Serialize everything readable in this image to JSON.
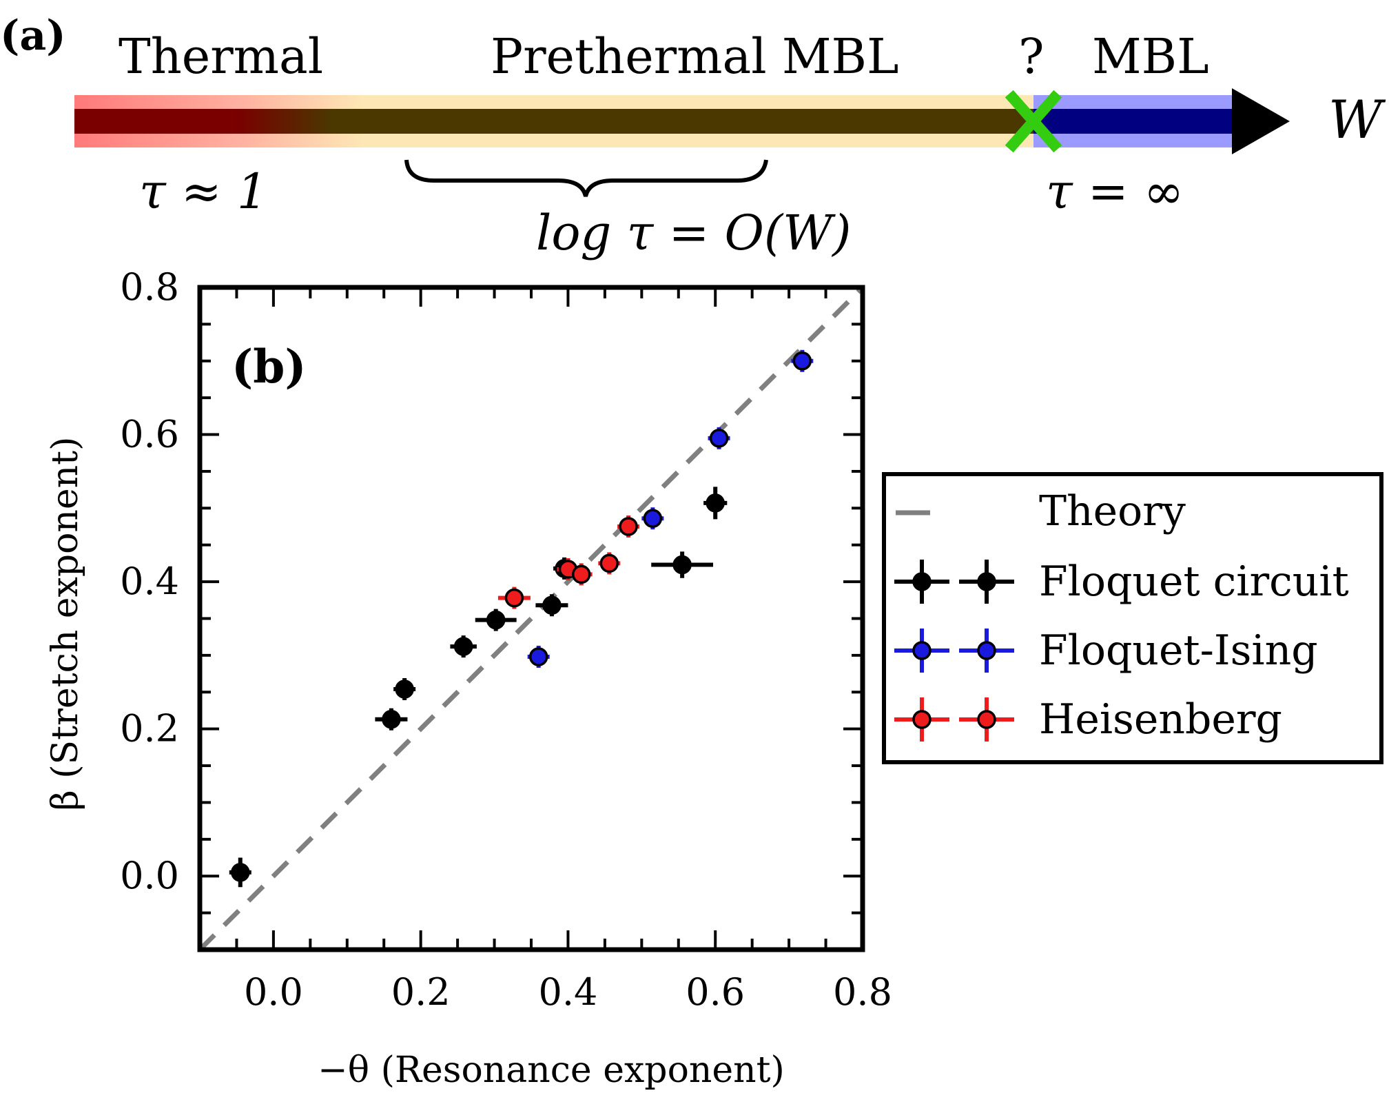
{
  "panel_a": {
    "label": "(a)",
    "regions": {
      "thermal": "Thermal",
      "prethermal": "Prethermal MBL",
      "question": "?",
      "mbl": "MBL"
    },
    "axis_var": "W",
    "tau_thermal": "τ ≈ 1",
    "tau_prethermal": "log τ = O(W)",
    "tau_mbl": "τ = ∞",
    "colors": {
      "thermal_core": "#6b0000",
      "thermal_glow": "#ff9a9a",
      "prethermal_core": "#4a3800",
      "prethermal_glow": "#fde7b5",
      "mbl_core": "#000080",
      "mbl_glow": "#9a9aff",
      "transition_marker": "#33cc11",
      "arrow": "#000000"
    }
  },
  "chart_data": {
    "type": "scatter",
    "panel_label": "(b)",
    "xlabel": "−θ (Resonance exponent)",
    "ylabel": "β (Stretch exponent)",
    "xlim": [
      -0.1,
      0.8
    ],
    "ylim": [
      -0.1,
      0.8
    ],
    "xticks": [
      0.0,
      0.2,
      0.4,
      0.6,
      0.8
    ],
    "yticks": [
      0.0,
      0.2,
      0.4,
      0.6,
      0.8
    ],
    "xtick_labels": [
      "0.0",
      "0.2",
      "0.4",
      "0.6",
      "0.8"
    ],
    "ytick_labels": [
      "0.0",
      "0.2",
      "0.4",
      "0.6",
      "0.8"
    ],
    "grid": false,
    "legend_position": "outside-right",
    "theory": {
      "name": "Theory",
      "slope": 1,
      "intercept": 0,
      "color": "#808080"
    },
    "series": [
      {
        "name": "Floquet circuit",
        "color": "#000000",
        "points": [
          {
            "x": -0.045,
            "y": 0.005,
            "xerr": 0.012,
            "yerr": 0.02
          },
          {
            "x": 0.16,
            "y": 0.213,
            "xerr": 0.022,
            "yerr": 0.006
          },
          {
            "x": 0.178,
            "y": 0.254,
            "xerr": 0.01,
            "yerr": 0.008
          },
          {
            "x": 0.258,
            "y": 0.312,
            "xerr": 0.018,
            "yerr": 0.006
          },
          {
            "x": 0.302,
            "y": 0.348,
            "xerr": 0.028,
            "yerr": 0.006
          },
          {
            "x": 0.378,
            "y": 0.368,
            "xerr": 0.022,
            "yerr": 0.006
          },
          {
            "x": 0.395,
            "y": 0.418,
            "xerr": 0.01,
            "yerr": 0.006
          },
          {
            "x": 0.555,
            "y": 0.423,
            "xerr": 0.042,
            "yerr": 0.018
          },
          {
            "x": 0.6,
            "y": 0.507,
            "xerr": 0.016,
            "yerr": 0.022
          }
        ]
      },
      {
        "name": "Floquet-Ising",
        "color": "#1a1adf",
        "points": [
          {
            "x": 0.36,
            "y": 0.298,
            "xerr": 0.0,
            "yerr": 0.0
          },
          {
            "x": 0.515,
            "y": 0.486,
            "xerr": 0.0,
            "yerr": 0.0
          },
          {
            "x": 0.605,
            "y": 0.595,
            "xerr": 0.0,
            "yerr": 0.0
          },
          {
            "x": 0.718,
            "y": 0.7,
            "xerr": 0.0,
            "yerr": 0.0
          }
        ]
      },
      {
        "name": "Heisenberg",
        "color": "#ee1c1c",
        "points": [
          {
            "x": 0.327,
            "y": 0.378,
            "xerr": 0.022,
            "yerr": 0.0
          },
          {
            "x": 0.4,
            "y": 0.417,
            "xerr": 0.0,
            "yerr": 0.0
          },
          {
            "x": 0.418,
            "y": 0.41,
            "xerr": 0.0,
            "yerr": 0.0
          },
          {
            "x": 0.456,
            "y": 0.425,
            "xerr": 0.0,
            "yerr": 0.0
          },
          {
            "x": 0.482,
            "y": 0.475,
            "xerr": 0.0,
            "yerr": 0.0
          }
        ]
      }
    ]
  }
}
